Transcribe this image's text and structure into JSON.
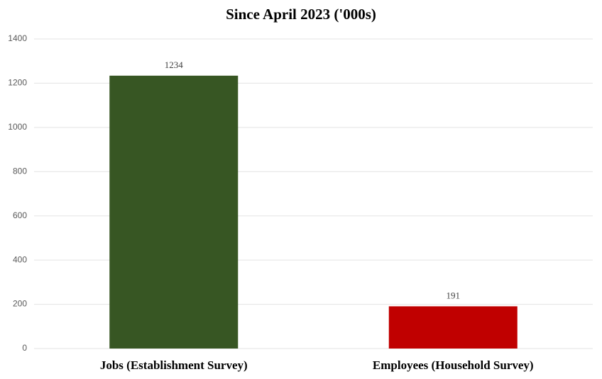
{
  "chart_data": {
    "type": "bar",
    "title": "Since April 2023 ('000s)",
    "categories": [
      "Jobs (Establishment Survey)",
      "Employees (Household Survey)"
    ],
    "values": [
      1234,
      191
    ],
    "colors": [
      "#375623",
      "#c00000"
    ],
    "ylim": [
      0,
      1400
    ],
    "yticks": [
      0,
      200,
      400,
      600,
      800,
      1000,
      1200,
      1400
    ],
    "grid": true
  }
}
